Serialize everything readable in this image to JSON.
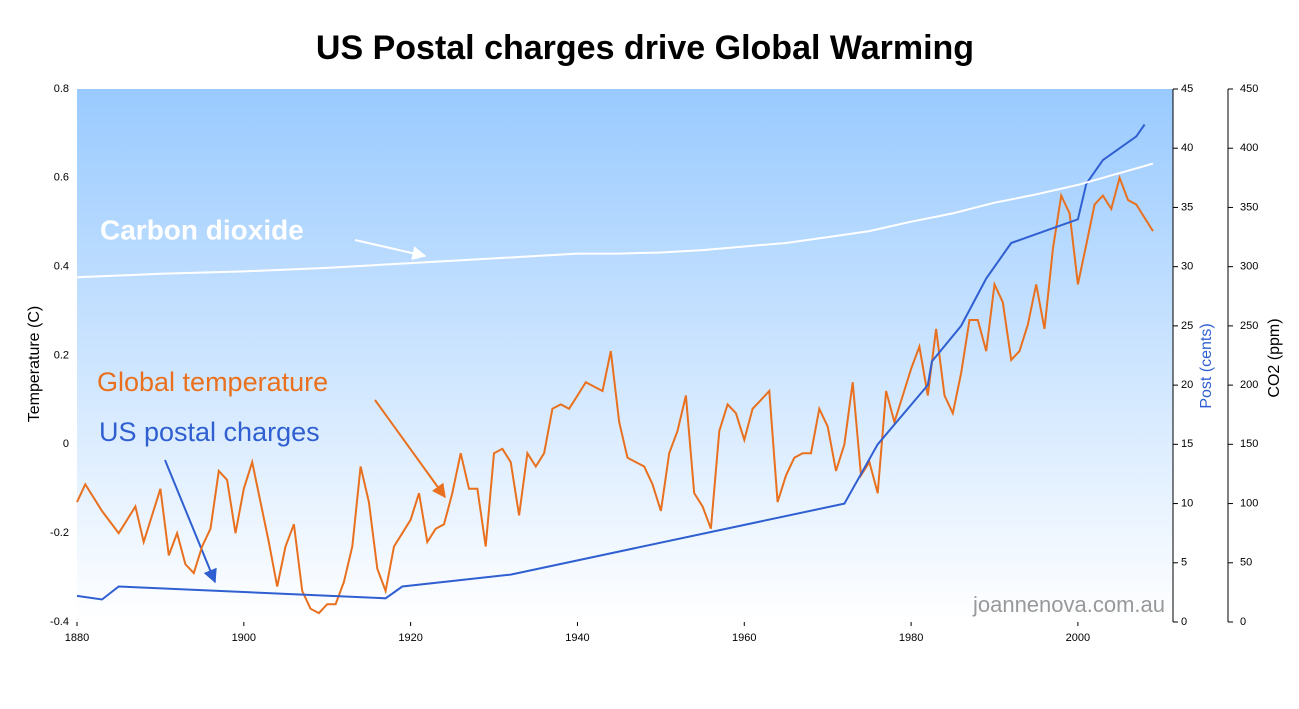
{
  "chart_data": {
    "type": "line",
    "title": "US Postal charges drive Global Warming",
    "ylabel": "Temperature (C)",
    "y2label": "Post (cents)",
    "y3label": "CO2 (ppm)",
    "watermark": "joannenova.com.au",
    "xlim": [
      1880,
      2011.4
    ],
    "xticks": [
      1880,
      1900,
      1920,
      1940,
      1960,
      1980,
      2000
    ],
    "ylim": [
      -0.4,
      0.8
    ],
    "yticks": [
      0.8,
      0.6,
      0.4,
      0.2,
      0,
      -0.2,
      -0.4
    ],
    "y2lim": [
      0,
      45
    ],
    "y2ticks": [
      45,
      40,
      35,
      30,
      25,
      20,
      15,
      10,
      5,
      0
    ],
    "y3lim": [
      0,
      450
    ],
    "y3ticks": [
      450,
      400,
      350,
      300,
      250,
      200,
      150,
      100,
      50,
      0
    ],
    "series": [
      {
        "name": "Global temperature",
        "color": "#e8701e",
        "axis": "y",
        "x": [
          1880,
          1881,
          1883,
          1885,
          1887,
          1888,
          1890,
          1891,
          1892,
          1893,
          1894,
          1895,
          1896,
          1897,
          1898,
          1899,
          1900,
          1901,
          1902,
          1903,
          1904,
          1905,
          1906,
          1907,
          1908,
          1909,
          1910,
          1911,
          1912,
          1913,
          1914,
          1915,
          1916,
          1917,
          1918,
          1919,
          1920,
          1921,
          1922,
          1923,
          1924,
          1925,
          1926,
          1927,
          1928,
          1929,
          1930,
          1931,
          1932,
          1933,
          1934,
          1935,
          1936,
          1937,
          1938,
          1939,
          1940,
          1941,
          1942,
          1943,
          1944,
          1945,
          1946,
          1947,
          1948,
          1949,
          1950,
          1951,
          1952,
          1953,
          1954,
          1955,
          1956,
          1957,
          1958,
          1959,
          1960,
          1961,
          1962,
          1963,
          1964,
          1965,
          1966,
          1967,
          1968,
          1969,
          1970,
          1971,
          1972,
          1973,
          1974,
          1975,
          1976,
          1977,
          1978,
          1979,
          1980,
          1981,
          1982,
          1983,
          1984,
          1985,
          1986,
          1987,
          1988,
          1989,
          1990,
          1991,
          1992,
          1993,
          1994,
          1995,
          1996,
          1997,
          1998,
          1999,
          2000,
          2001,
          2002,
          2003,
          2004,
          2005,
          2006,
          2007,
          2008,
          2009
        ],
        "values": [
          -0.13,
          -0.09,
          -0.15,
          -0.2,
          -0.14,
          -0.22,
          -0.1,
          -0.25,
          -0.2,
          -0.27,
          -0.29,
          -0.23,
          -0.19,
          -0.06,
          -0.08,
          -0.2,
          -0.1,
          -0.04,
          -0.13,
          -0.22,
          -0.32,
          -0.23,
          -0.18,
          -0.33,
          -0.37,
          -0.38,
          -0.36,
          -0.36,
          -0.31,
          -0.23,
          -0.05,
          -0.13,
          -0.28,
          -0.33,
          -0.23,
          -0.2,
          -0.17,
          -0.11,
          -0.22,
          -0.19,
          -0.18,
          -0.11,
          -0.02,
          -0.1,
          -0.1,
          -0.23,
          -0.02,
          -0.01,
          -0.04,
          -0.16,
          -0.02,
          -0.05,
          -0.02,
          0.08,
          0.09,
          0.08,
          0.11,
          0.14,
          0.13,
          0.12,
          0.21,
          0.05,
          -0.03,
          -0.04,
          -0.05,
          -0.09,
          -0.15,
          -0.02,
          0.03,
          0.11,
          -0.11,
          -0.14,
          -0.19,
          0.03,
          0.09,
          0.07,
          0.01,
          0.08,
          0.1,
          0.12,
          -0.13,
          -0.07,
          -0.03,
          -0.02,
          -0.02,
          0.08,
          0.04,
          -0.06,
          0,
          0.14,
          -0.07,
          -0.04,
          -0.11,
          0.12,
          0.05,
          0.11,
          0.17,
          0.22,
          0.11,
          0.26,
          0.11,
          0.07,
          0.16,
          0.28,
          0.28,
          0.21,
          0.36,
          0.32,
          0.19,
          0.21,
          0.27,
          0.36,
          0.26,
          0.44,
          0.56,
          0.52,
          0.36,
          0.45,
          0.54,
          0.56,
          0.53,
          0.6,
          0.55,
          0.54,
          0.51,
          0.48
        ]
      },
      {
        "name": "US postal charges",
        "color": "#2f5fd0",
        "axis": "y2",
        "x": [
          1880,
          1883,
          1885,
          1917,
          1919,
          1932,
          1972,
          1976,
          1982,
          1982.5,
          1986,
          1989,
          1992,
          2000,
          2001,
          2003,
          2007,
          2008
        ],
        "values": [
          2.2,
          1.9,
          3,
          2,
          3,
          4,
          10,
          15,
          20,
          22,
          25,
          29,
          32,
          34,
          37,
          39,
          41,
          42
        ]
      },
      {
        "name": "Carbon dioxide",
        "color": "#ffffff",
        "axis": "y3",
        "x": [
          1880,
          1890,
          1900,
          1910,
          1920,
          1930,
          1940,
          1945,
          1950,
          1955,
          1960,
          1965,
          1970,
          1975,
          1980,
          1985,
          1990,
          1995,
          2000,
          2005,
          2009
        ],
        "values": [
          291,
          294,
          296,
          299,
          303,
          307,
          311,
          311,
          312,
          314,
          317,
          320,
          325,
          330,
          338,
          345,
          354,
          361,
          369,
          379,
          387
        ]
      }
    ]
  }
}
